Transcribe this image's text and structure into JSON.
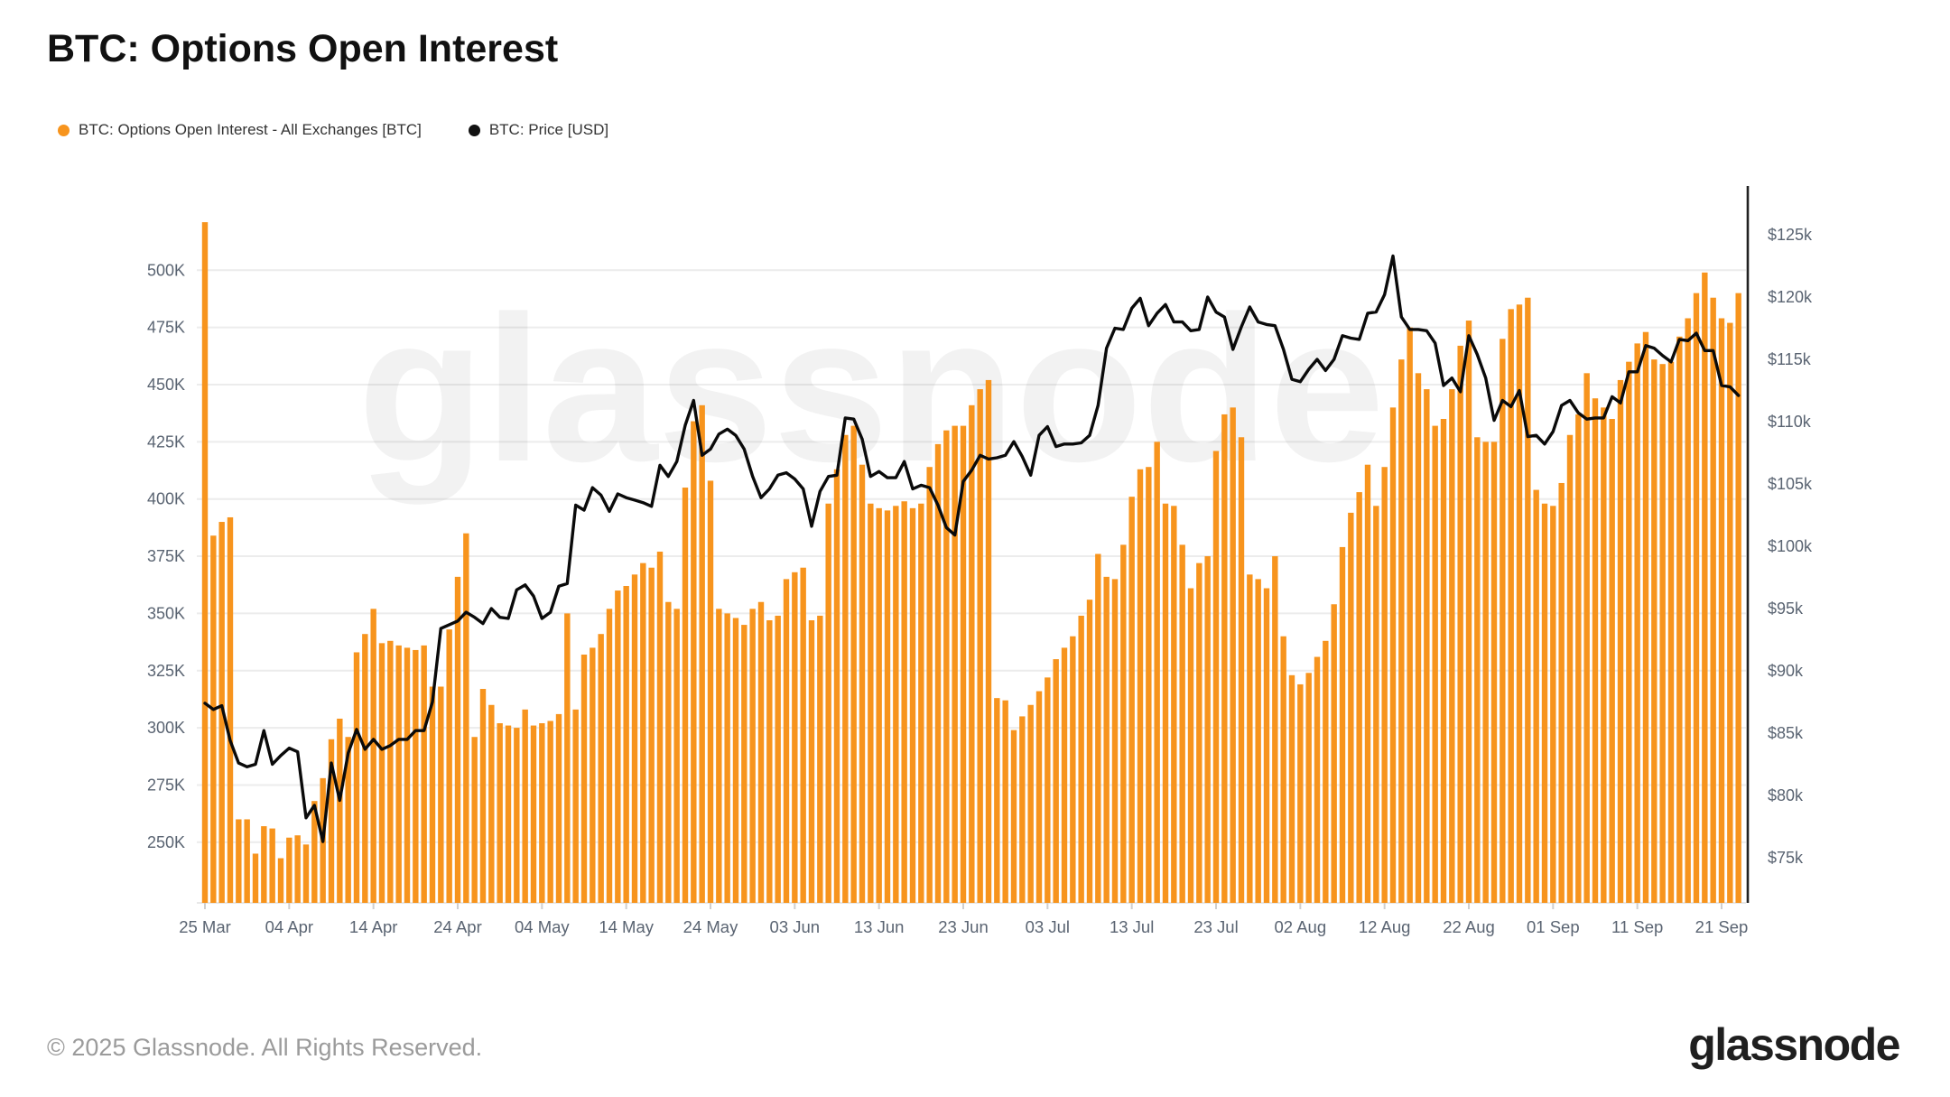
{
  "header": {
    "title": "BTC: Options Open Interest"
  },
  "legend": [
    {
      "label": "BTC: Options Open Interest - All Exchanges [BTC]",
      "color": "#F7941D"
    },
    {
      "label": "BTC: Price [USD]",
      "color": "#111111"
    }
  ],
  "watermark": "glassnode",
  "footer": {
    "copyright": "© 2025 Glassnode. All Rights Reserved.",
    "brand": "glassnode"
  },
  "colors": {
    "bars": "#F7941D",
    "price_line": "#0a0a0a",
    "grid": "#ececec",
    "axis_text": "#5a6472",
    "right_axis_line": "#222222"
  },
  "chart_data": {
    "type": "bar",
    "title": "BTC: Options Open Interest",
    "frequency": "daily",
    "x_start_label": "25 Mar",
    "x_end_label": "21 Sep",
    "x_tick_labels": [
      "25 Mar",
      "04 Apr",
      "14 Apr",
      "24 Apr",
      "04 May",
      "14 May",
      "24 May",
      "03 Jun",
      "13 Jun",
      "23 Jun",
      "03 Jul",
      "13 Jul",
      "23 Jul",
      "02 Aug",
      "12 Aug",
      "22 Aug",
      "01 Sep",
      "11 Sep",
      "21 Sep"
    ],
    "left_axis": {
      "unit": "K BTC",
      "tick_labels": [
        "500K",
        "475K",
        "450K",
        "425K",
        "400K",
        "375K",
        "350K",
        "325K",
        "300K",
        "275K",
        "250K"
      ],
      "tick_values": [
        500,
        475,
        450,
        425,
        400,
        375,
        350,
        325,
        300,
        275,
        250
      ],
      "baseline_value": 223.5
    },
    "right_axis": {
      "unit": "USD",
      "tick_labels": [
        "$125k",
        "$120k",
        "$115k",
        "$110k",
        "$105k",
        "$100k",
        "$95k",
        "$90k",
        "$85k",
        "$80k",
        "$75k"
      ],
      "tick_values": [
        125,
        120,
        115,
        110,
        105,
        100,
        95,
        90,
        85,
        80,
        75
      ]
    },
    "grid": "horizontal",
    "legend_position": "top-left",
    "series": [
      {
        "name": "BTC: Options Open Interest - All Exchanges [BTC]",
        "type": "bar",
        "color": "#F7941D",
        "unit": "thousand BTC",
        "values": [
          521,
          384,
          390,
          392,
          260,
          260,
          245,
          257,
          256,
          243,
          252,
          253,
          249,
          268,
          278,
          295,
          304,
          296,
          333,
          341,
          352,
          337,
          338,
          336,
          335,
          334,
          336,
          318,
          318,
          343,
          366,
          385,
          296,
          317,
          310,
          302,
          301,
          300,
          308,
          301,
          302,
          303,
          306,
          350,
          308,
          332,
          335,
          341,
          352,
          360,
          362,
          367,
          372,
          370,
          377,
          355,
          352,
          405,
          434,
          441,
          408,
          352,
          350,
          348,
          345,
          352,
          355,
          347,
          349,
          365,
          368,
          370,
          347,
          349,
          398,
          413,
          428,
          432,
          415,
          398,
          396,
          395,
          397,
          399,
          396,
          398,
          414,
          424,
          430,
          432,
          432,
          441,
          448,
          452,
          313,
          312,
          299,
          305,
          310,
          316,
          322,
          330,
          335,
          340,
          349,
          356,
          376,
          366,
          365,
          380,
          401,
          413,
          414,
          425,
          398,
          397,
          380,
          361,
          372,
          375,
          421,
          437,
          440,
          427,
          367,
          365,
          361,
          375,
          340,
          323,
          319,
          324,
          331,
          338,
          354,
          379,
          394,
          403,
          415,
          397,
          414,
          440,
          461,
          475,
          455,
          448,
          432,
          435,
          448,
          467,
          478,
          427,
          425,
          425,
          470,
          483,
          485,
          488,
          404,
          398,
          397,
          407,
          428,
          437,
          455,
          444,
          440,
          435,
          452,
          460,
          468,
          473,
          461,
          459,
          460,
          471,
          479,
          490,
          499,
          488,
          479,
          477,
          490
        ]
      },
      {
        "name": "BTC: Price [USD]",
        "type": "line",
        "color": "#0a0a0a",
        "unit": "$k",
        "values": [
          87.4,
          86.9,
          87.2,
          84.4,
          82.6,
          82.3,
          82.5,
          85.2,
          82.5,
          83.2,
          83.8,
          83.5,
          78.2,
          79.2,
          76.3,
          82.6,
          79.6,
          83.4,
          85.3,
          83.7,
          84.5,
          83.7,
          84.0,
          84.5,
          84.5,
          85.2,
          85.2,
          87.5,
          93.4,
          93.7,
          94.0,
          94.7,
          94.3,
          93.8,
          95.0,
          94.3,
          94.2,
          96.5,
          96.9,
          96.0,
          94.2,
          94.7,
          96.8,
          97.0,
          103.3,
          102.9,
          104.7,
          104.1,
          102.8,
          104.2,
          103.9,
          103.7,
          103.5,
          103.2,
          106.5,
          105.6,
          106.8,
          109.7,
          111.7,
          107.3,
          107.8,
          109.0,
          109.4,
          108.9,
          107.8,
          105.6,
          103.9,
          104.6,
          105.7,
          105.9,
          105.4,
          104.6,
          101.6,
          104.4,
          105.6,
          105.7,
          110.3,
          110.2,
          108.6,
          105.6,
          106.0,
          105.5,
          105.5,
          106.8,
          104.6,
          104.9,
          104.7,
          103.3,
          101.5,
          100.9,
          105.2,
          106.1,
          107.3,
          107.0,
          107.1,
          107.3,
          108.4,
          107.2,
          105.7,
          108.9,
          109.6,
          108.0,
          108.2,
          108.2,
          108.3,
          108.9,
          111.3,
          115.9,
          117.5,
          117.4,
          119.1,
          119.9,
          117.7,
          118.7,
          119.4,
          118.0,
          118.0,
          117.3,
          117.4,
          120.0,
          118.8,
          118.4,
          115.8,
          117.6,
          119.2,
          118.0,
          117.8,
          117.7,
          115.8,
          113.4,
          113.2,
          114.2,
          115.0,
          114.1,
          115.0,
          116.9,
          116.7,
          116.6,
          118.7,
          118.8,
          120.2,
          123.3,
          118.4,
          117.4,
          117.4,
          117.3,
          116.3,
          112.9,
          113.5,
          112.4,
          116.9,
          115.4,
          113.5,
          110.1,
          111.7,
          111.2,
          112.5,
          108.8,
          108.9,
          108.2,
          109.2,
          111.3,
          111.7,
          110.7,
          110.2,
          110.3,
          110.3,
          112.0,
          111.5,
          114.0,
          114.0,
          116.1,
          115.9,
          115.3,
          114.8,
          116.6,
          116.5,
          117.1,
          115.7,
          115.7,
          112.9,
          112.8,
          112.1
        ]
      }
    ]
  }
}
